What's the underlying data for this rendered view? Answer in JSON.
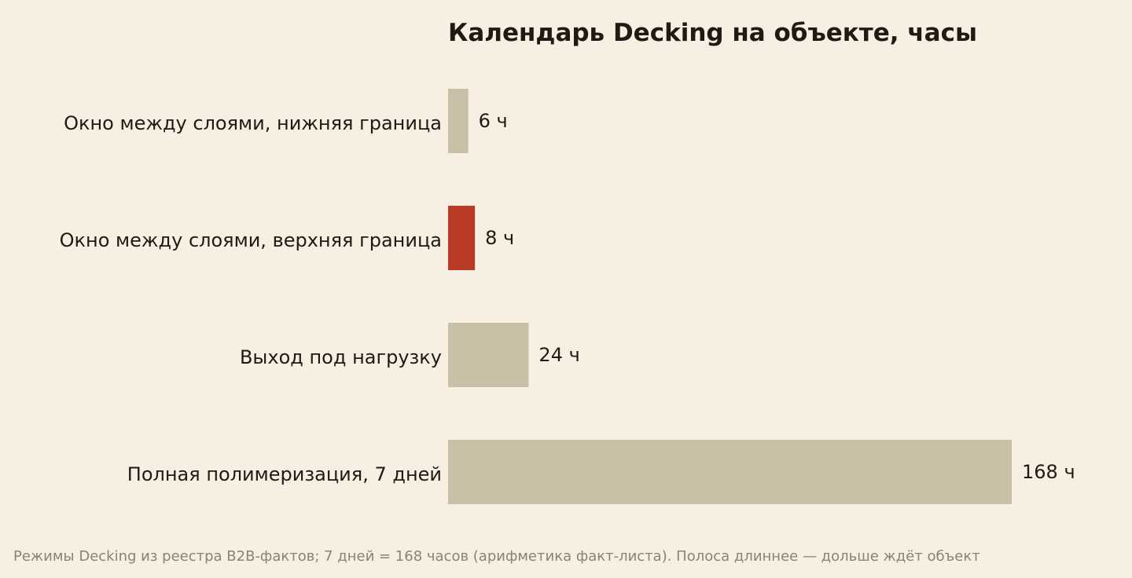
{
  "chart_data": {
    "type": "bar",
    "orientation": "horizontal",
    "title": "Календарь Decking на объекте, часы",
    "categories": [
      "Окно между слоями, нижняя граница",
      "Окно между слоями, верхняя граница",
      "Выход под нагрузку",
      "Полная полимеризация, 7 дней"
    ],
    "values": [
      6,
      8,
      24,
      168
    ],
    "value_labels": [
      "6 ч",
      "8 ч",
      "24 ч",
      "168 ч"
    ],
    "bar_colors": [
      "#c9bfa7",
      "#b93b27",
      "#c9bfa7",
      "#c9bfa7"
    ],
    "xlim": [
      0,
      168
    ],
    "grid": false,
    "footnote": "Режимы Decking из реестра B2B-фактов; 7 дней = 168 часов (арифметика факт-листа). Полоса длиннее — дольше ждёт объект"
  },
  "colors": {
    "background": "#f6efe2",
    "text": "#1f1b14",
    "muted_text": "#8a8275",
    "bar_default": "#c9bfa7",
    "bar_highlight": "#b93b27"
  }
}
